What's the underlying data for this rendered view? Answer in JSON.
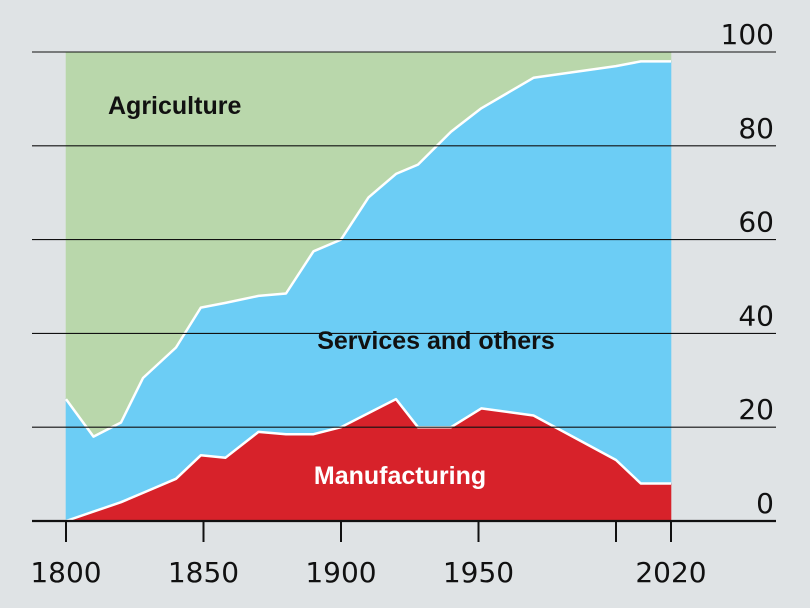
{
  "chart_data": {
    "type": "area",
    "stacked": true,
    "x": [
      1800,
      1810,
      1820,
      1828,
      1840,
      1849,
      1858,
      1870,
      1880,
      1890,
      1900,
      1910,
      1920,
      1928,
      1940,
      1951,
      1970,
      2000,
      2009,
      2020
    ],
    "series": [
      {
        "name": "Manufacturing",
        "color": "#d7222a",
        "values": [
          0,
          2,
          4,
          6,
          9,
          14,
          13.5,
          19,
          18.5,
          18.5,
          20,
          23,
          26,
          20,
          20,
          24,
          22.5,
          13,
          8,
          8
        ]
      },
      {
        "name": "Services and others",
        "color": "#6ccdf5",
        "values": [
          26,
          16,
          17,
          24.5,
          28,
          31.5,
          33,
          29,
          30,
          39,
          40,
          46,
          48,
          56,
          63,
          64,
          72,
          84,
          90,
          90
        ]
      },
      {
        "name": "Agriculture",
        "color": "#b9d7ab",
        "values": [
          74,
          82,
          79,
          69.5,
          63,
          54.5,
          53.5,
          52,
          51.5,
          42.5,
          40,
          31,
          26,
          24,
          17,
          12,
          5.5,
          3,
          2,
          2
        ]
      }
    ],
    "y_axis_position": "right",
    "ylim": [
      0,
      100
    ],
    "yticks": [
      0,
      20,
      40,
      60,
      80,
      100
    ],
    "xticks": [
      1800,
      1850,
      1900,
      1950,
      2020
    ],
    "xlim": [
      1788,
      2065
    ],
    "grid": true,
    "legend": "none (series labelled inside areas)",
    "title": "",
    "xlabel": "",
    "ylabel": ""
  },
  "colors": {
    "background": "#dfe3e5",
    "divider_line": "#ffffff",
    "axis_line": "#111111"
  }
}
